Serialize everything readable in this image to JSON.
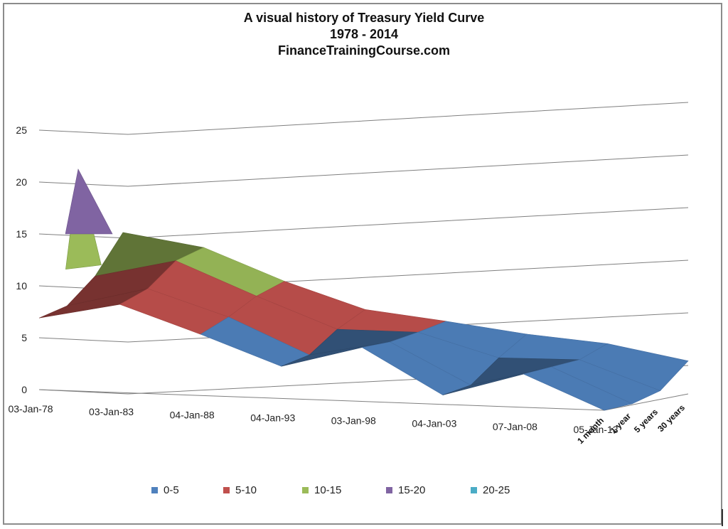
{
  "chart_data": {
    "type": "surface-3d",
    "title": "A visual history of Treasury Yield Curve",
    "subtitle": "1978 - 2014",
    "source": "FinanceTrainingCourse.com",
    "z_axis": {
      "ticks": [
        0,
        5,
        10,
        15,
        20,
        25
      ],
      "range": [
        0,
        25
      ]
    },
    "x_axis": {
      "ticks": [
        "03-Jan-78",
        "03-Jan-83",
        "04-Jan-88",
        "04-Jan-93",
        "03-Jan-98",
        "04-Jan-03",
        "07-Jan-08",
        "05-Jan-13"
      ]
    },
    "depth_axis": {
      "ticks": [
        "1 month",
        "1 year",
        "5 years",
        "30 years"
      ]
    },
    "bands": [
      {
        "name": "0-5",
        "color": "#4f81bd"
      },
      {
        "name": "5-10",
        "color": "#c0504d"
      },
      {
        "name": "10-15",
        "color": "#9bbb59"
      },
      {
        "name": "15-20",
        "color": "#8064a2"
      },
      {
        "name": "20-25",
        "color": "#4bacc6"
      }
    ],
    "series": [
      {
        "name": "1 month",
        "values": [
          6.9,
          8.5,
          5.9,
          3.1,
          5.2,
          0.9,
          3.2,
          0.0
        ]
      },
      {
        "name": "1 year",
        "values": [
          7.4,
          9.3,
          6.9,
          3.6,
          5.1,
          1.3,
          3.3,
          0.1
        ]
      },
      {
        "name": "5 years",
        "values": [
          9.5,
          11.2,
          8.2,
          5.4,
          5.4,
          3.3,
          3.4,
          0.8
        ]
      },
      {
        "name": "30 years",
        "values": [
          12.8,
          11.7,
          8.9,
          6.6,
          5.8,
          4.9,
          4.3,
          3.0
        ]
      }
    ],
    "peak": {
      "label_date": "03-Jan-78",
      "note": "",
      "value": 20.0
    }
  }
}
